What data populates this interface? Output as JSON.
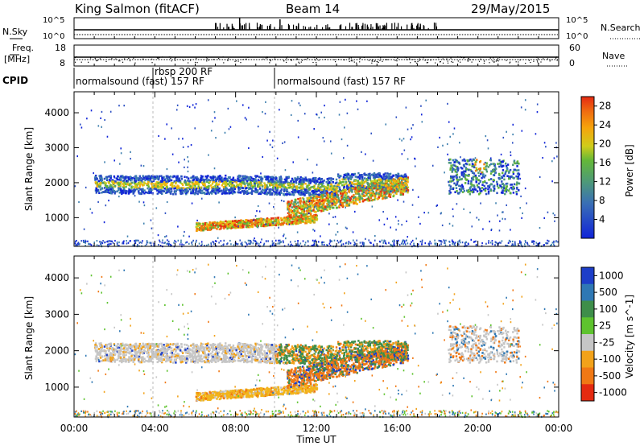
{
  "header": {
    "station": "King Salmon (fitACF)",
    "beam": "Beam 14",
    "date": "29/May/2015"
  },
  "aux_panels": {
    "nsky_label": "N.Sky",
    "nsearch_label": "N.Search",
    "noise_ticks_left": [
      "10^5",
      "10^0"
    ],
    "noise_ticks_right": [
      "10^5",
      "10^0"
    ],
    "freq_label_top": "Freq.",
    "freq_label_bottom": "[MHz]",
    "freq_ticks": [
      "18",
      "8"
    ],
    "nave_label": "Nave",
    "nave_ticks": [
      "60",
      "0"
    ],
    "cpid_label": "CPID",
    "cpid_segments": [
      {
        "label": "normalsound (fast) 157 RF",
        "start_hour": 0.0
      },
      {
        "label": "rbsp 200 RF",
        "start_hour": 4.0
      },
      {
        "label": "normalsound (fast) 157 RF",
        "start_hour": 10.0
      }
    ]
  },
  "chart_data": [
    {
      "type": "heatmap",
      "name": "power",
      "ylabel": "Slant Range [km]",
      "x_range_hours": [
        0,
        24
      ],
      "ylim": [
        180,
        4600
      ],
      "y_ticks": [
        1000,
        2000,
        3000,
        4000
      ],
      "colorbar_label": "Power [dB]",
      "colorbar_ticks": [
        4,
        8,
        12,
        16,
        20,
        24,
        28
      ],
      "colorbar_range": [
        0,
        30
      ],
      "colors": [
        "#1024d8",
        "#2a4ec2",
        "#3d7fae",
        "#4e9a78",
        "#61b43a",
        "#c9cc1e",
        "#f6b00c",
        "#f07c10",
        "#e43412"
      ],
      "features": [
        {
          "label": "main backscatter band",
          "hours": [
            1.0,
            16.5
          ],
          "range_km": [
            1600,
            2300
          ],
          "peak_db": 20
        },
        {
          "label": "lower band",
          "hours": [
            6.0,
            12.0
          ],
          "range_km": [
            650,
            1000
          ],
          "peak_db": 26
        },
        {
          "label": "afternoon patch",
          "hours": [
            10.5,
            16.5
          ],
          "range_km": [
            1000,
            2200
          ],
          "peak_db": 26
        },
        {
          "label": "evening patch",
          "hours": [
            18.5,
            22.0
          ],
          "range_km": [
            1600,
            2800
          ],
          "peak_db": 22
        }
      ]
    },
    {
      "type": "heatmap",
      "name": "velocity",
      "ylabel": "Slant Range [km]",
      "xlabel": "Time UT",
      "x_ticks": [
        "00:00",
        "04:00",
        "08:00",
        "12:00",
        "16:00",
        "20:00",
        "00:00"
      ],
      "x_range_hours": [
        0,
        24
      ],
      "ylim": [
        180,
        4600
      ],
      "y_ticks": [
        1000,
        2000,
        3000,
        4000
      ],
      "colorbar_label": "Velocity [m s^-1]",
      "colorbar_ticks": [
        "1000",
        "500",
        "100",
        "25",
        "-25",
        "-100",
        "-500",
        "-1000"
      ],
      "colors": [
        "#1d3ec8",
        "#2f78b4",
        "#3e8e4a",
        "#5ec32e",
        "#c6c6c6",
        "#f2a21a",
        "#f07814",
        "#e42a10"
      ],
      "ground_scatter_color": "#c6c6c6"
    }
  ]
}
